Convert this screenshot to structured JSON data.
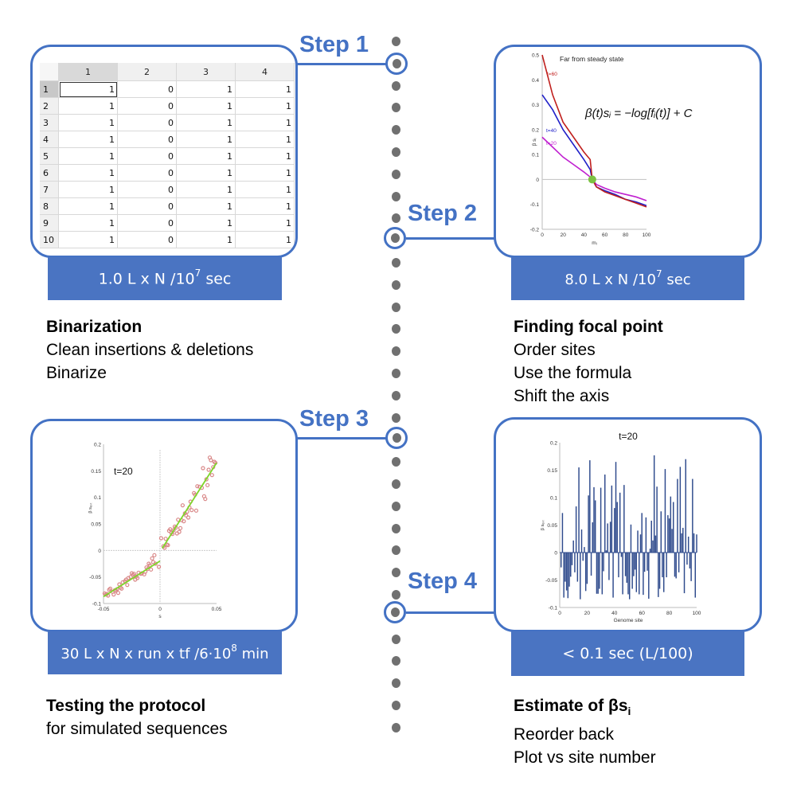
{
  "timeline": {
    "dot_color": "#707070",
    "accent_color": "#4472c4",
    "cost_box_color": "#4a74c2"
  },
  "steps": [
    {
      "label": "Step 1",
      "cost": {
        "prefix": "1.0 L x N /10",
        "sup": "7",
        "suffix": " sec"
      },
      "title": "Binarization",
      "lines": [
        "Clean insertions & deletions",
        "Binarize"
      ]
    },
    {
      "label": "Step 2",
      "cost": {
        "prefix": "8.0 L x N /10",
        "sup": "7",
        "suffix": " sec"
      },
      "title": "Finding focal point",
      "lines": [
        "Order sites",
        "Use the formula",
        "Shift the axis"
      ]
    },
    {
      "label": "Step 3",
      "cost": {
        "prefix": "30 L x N x run x tf /6·10",
        "sup": "8",
        "suffix": " min"
      },
      "title": "Testing the protocol",
      "lines": [
        "for simulated sequences"
      ]
    },
    {
      "label": "Step 4",
      "cost": {
        "prefix": "< 0.1 sec (L/100)",
        "sup": "",
        "suffix": ""
      },
      "title": "Estimate of βs",
      "title_sub": "i",
      "lines": [
        "Reorder back",
        "Plot vs site number"
      ]
    }
  ],
  "spreadsheet": {
    "columns": [
      "1",
      "2",
      "3",
      "4"
    ],
    "rows": [
      {
        "h": "1",
        "v": [
          "1",
          "0",
          "1",
          "1"
        ]
      },
      {
        "h": "2",
        "v": [
          "1",
          "0",
          "1",
          "1"
        ]
      },
      {
        "h": "3",
        "v": [
          "1",
          "0",
          "1",
          "1"
        ]
      },
      {
        "h": "4",
        "v": [
          "1",
          "0",
          "1",
          "1"
        ]
      },
      {
        "h": "5",
        "v": [
          "1",
          "0",
          "1",
          "1"
        ]
      },
      {
        "h": "6",
        "v": [
          "1",
          "0",
          "1",
          "1"
        ]
      },
      {
        "h": "7",
        "v": [
          "1",
          "0",
          "1",
          "1"
        ]
      },
      {
        "h": "8",
        "v": [
          "1",
          "0",
          "1",
          "1"
        ]
      },
      {
        "h": "9",
        "v": [
          "1",
          "0",
          "1",
          "1"
        ]
      },
      {
        "h": "10",
        "v": [
          "1",
          "0",
          "1",
          "1"
        ]
      }
    ]
  },
  "chart_data": [
    {
      "type": "line",
      "title": "Far from steady state",
      "annotation": "β(t)sᵢ = −log[fᵢ(t)] + C",
      "xlabel": "m_i",
      "ylabel": "β s_i",
      "xlim": [
        0,
        100
      ],
      "ylim": [
        -0.2,
        0.5
      ],
      "xticks": [
        "0",
        "20",
        "40",
        "60",
        "80",
        "100"
      ],
      "yticks": [
        "-0.2",
        "-0.1",
        "0",
        "0.1",
        "0.2",
        "0.3",
        "0.4",
        "0.5"
      ],
      "focal_point": {
        "x": 48,
        "y": 0,
        "color": "#7cc242"
      },
      "x": [
        0,
        10,
        20,
        30,
        40,
        46,
        48,
        52,
        60,
        70,
        80,
        90,
        100
      ],
      "series": [
        {
          "name": "t=60",
          "color": "#c0201e",
          "values": [
            0.5,
            0.34,
            0.23,
            0.17,
            0.11,
            0.08,
            0.0,
            -0.03,
            -0.05,
            -0.065,
            -0.08,
            -0.095,
            -0.11
          ]
        },
        {
          "name": "t=40",
          "color": "#2020c8",
          "values": [
            0.34,
            0.28,
            0.2,
            0.14,
            0.08,
            0.04,
            0.0,
            -0.03,
            -0.045,
            -0.06,
            -0.08,
            -0.09,
            -0.105
          ]
        },
        {
          "name": "t=20",
          "color": "#c020d0",
          "values": [
            0.17,
            0.13,
            0.09,
            0.06,
            0.03,
            0.01,
            0.0,
            -0.02,
            -0.035,
            -0.05,
            -0.06,
            -0.07,
            -0.085
          ]
        }
      ]
    },
    {
      "type": "scatter",
      "title": "t=20",
      "xlabel": "s",
      "ylabel": "β s_est",
      "xlim": [
        -0.05,
        0.05
      ],
      "ylim": [
        -0.1,
        0.2
      ],
      "xticks": [
        "-0.05",
        "0",
        "0.05"
      ],
      "yticks": [
        "-0.1",
        "-0.05",
        "0",
        "0.05",
        "0.1",
        "0.15",
        "0.2"
      ],
      "fit_color": "#7ed62a",
      "point_color": "#d98888",
      "fit_segments": [
        {
          "x": [
            -0.05,
            0.0
          ],
          "y": [
            -0.087,
            -0.02
          ]
        },
        {
          "x": [
            0.002,
            0.05
          ],
          "y": [
            0.004,
            0.165
          ]
        }
      ],
      "points": [
        [
          -0.049,
          -0.081
        ],
        [
          -0.048,
          -0.083
        ],
        [
          -0.047,
          -0.082
        ],
        [
          -0.046,
          -0.085
        ],
        [
          -0.045,
          -0.074
        ],
        [
          -0.044,
          -0.072
        ],
        [
          -0.042,
          -0.078
        ],
        [
          -0.041,
          -0.083
        ],
        [
          -0.04,
          -0.075
        ],
        [
          -0.039,
          -0.076
        ],
        [
          -0.038,
          -0.073
        ],
        [
          -0.037,
          -0.08
        ],
        [
          -0.036,
          -0.064
        ],
        [
          -0.035,
          -0.07
        ],
        [
          -0.034,
          -0.072
        ],
        [
          -0.033,
          -0.06
        ],
        [
          -0.031,
          -0.058
        ],
        [
          -0.03,
          -0.055
        ],
        [
          -0.029,
          -0.065
        ],
        [
          -0.028,
          -0.052
        ],
        [
          -0.026,
          -0.05
        ],
        [
          -0.025,
          -0.043
        ],
        [
          -0.024,
          -0.046
        ],
        [
          -0.023,
          -0.044
        ],
        [
          -0.022,
          -0.055
        ],
        [
          -0.021,
          -0.049
        ],
        [
          -0.02,
          -0.052
        ],
        [
          -0.019,
          -0.042
        ],
        [
          -0.017,
          -0.044
        ],
        [
          -0.016,
          -0.043
        ],
        [
          -0.014,
          -0.045
        ],
        [
          -0.013,
          -0.04
        ],
        [
          -0.012,
          -0.032
        ],
        [
          -0.011,
          -0.035
        ],
        [
          -0.01,
          -0.025
        ],
        [
          -0.009,
          -0.028
        ],
        [
          -0.008,
          -0.036
        ],
        [
          -0.007,
          -0.015
        ],
        [
          -0.006,
          -0.022
        ],
        [
          -0.005,
          -0.009
        ],
        [
          -0.004,
          -0.025
        ],
        [
          -0.001,
          -0.031
        ],
        [
          0.001,
          0.023
        ],
        [
          0.003,
          0.008
        ],
        [
          0.004,
          0.005
        ],
        [
          0.005,
          0.022
        ],
        [
          0.006,
          0.011
        ],
        [
          0.007,
          0.01
        ],
        [
          0.008,
          0.037
        ],
        [
          0.009,
          0.04
        ],
        [
          0.01,
          0.033
        ],
        [
          0.011,
          0.031
        ],
        [
          0.012,
          0.038
        ],
        [
          0.013,
          0.045
        ],
        [
          0.014,
          0.043
        ],
        [
          0.015,
          0.032
        ],
        [
          0.016,
          0.058
        ],
        [
          0.017,
          0.035
        ],
        [
          0.018,
          0.042
        ],
        [
          0.019,
          0.057
        ],
        [
          0.02,
          0.085
        ],
        [
          0.021,
          0.055
        ],
        [
          0.022,
          0.07
        ],
        [
          0.023,
          0.066
        ],
        [
          0.024,
          0.073
        ],
        [
          0.025,
          0.062
        ],
        [
          0.026,
          0.081
        ],
        [
          0.027,
          0.092
        ],
        [
          0.028,
          0.076
        ],
        [
          0.03,
          0.108
        ],
        [
          0.031,
          0.105
        ],
        [
          0.032,
          0.075
        ],
        [
          0.033,
          0.121
        ],
        [
          0.035,
          0.12
        ],
        [
          0.037,
          0.118
        ],
        [
          0.038,
          0.155
        ],
        [
          0.039,
          0.102
        ],
        [
          0.04,
          0.097
        ],
        [
          0.041,
          0.134
        ],
        [
          0.042,
          0.123
        ],
        [
          0.043,
          0.152
        ],
        [
          0.044,
          0.175
        ],
        [
          0.045,
          0.17
        ],
        [
          0.046,
          0.142
        ],
        [
          0.047,
          0.157
        ],
        [
          0.048,
          0.167
        ],
        [
          0.049,
          0.165
        ]
      ]
    },
    {
      "type": "bar",
      "title": "t=20",
      "xlabel": "Genome site",
      "ylabel": "β s_est",
      "xlim": [
        0,
        100
      ],
      "ylim": [
        -0.1,
        0.2
      ],
      "xticks": [
        "0",
        "20",
        "40",
        "60",
        "80",
        "100"
      ],
      "yticks": [
        "-0.1",
        "-0.05",
        "0",
        "0.05",
        "0.1",
        "0.15",
        "0.2"
      ],
      "bar_color": "#2e4a8c",
      "x": [
        1,
        2,
        3,
        4,
        5,
        6,
        7,
        8,
        9,
        10,
        11,
        12,
        13,
        14,
        15,
        16,
        17,
        18,
        19,
        20,
        21,
        22,
        23,
        24,
        25,
        26,
        27,
        28,
        29,
        30,
        31,
        32,
        33,
        34,
        35,
        36,
        37,
        38,
        39,
        40,
        41,
        42,
        43,
        44,
        45,
        46,
        47,
        48,
        49,
        50,
        51,
        52,
        53,
        54,
        55,
        56,
        57,
        58,
        59,
        60,
        61,
        62,
        63,
        64,
        65,
        66,
        67,
        68,
        69,
        70,
        71,
        72,
        73,
        74,
        75,
        76,
        77,
        78,
        79,
        80,
        81,
        82,
        83,
        84,
        85,
        86,
        87,
        88,
        89,
        90,
        91,
        92,
        93,
        94,
        95,
        96,
        97,
        98,
        99,
        100
      ],
      "values": [
        -0.027,
        0.072,
        -0.082,
        -0.053,
        -0.069,
        -0.083,
        -0.062,
        -0.044,
        -0.023,
        0.022,
        -0.036,
        0.084,
        -0.053,
        0.155,
        -0.085,
        0.042,
        -0.015,
        0.01,
        -0.07,
        -0.057,
        0.104,
        0.168,
        -0.042,
        0.055,
        0.119,
        0.095,
        -0.075,
        -0.075,
        -0.066,
        0.118,
        -0.076,
        -0.034,
        0.142,
        0.004,
        0.053,
        -0.05,
        0.056,
        0.122,
        -0.082,
        0.081,
        0.165,
        0.092,
        -0.045,
        0.109,
        -0.008,
        -0.076,
        0.123,
        -0.043,
        -0.055,
        -0.076,
        -0.085,
        0.051,
        -0.066,
        -0.043,
        -0.031,
        -0.072,
        0.04,
        -0.076,
        0.033,
        0.072,
        -0.077,
        -0.035,
        0.064,
        -0.033,
        -0.084,
        0.007,
        0.058,
        0.022,
        0.177,
        0.031,
        0.12,
        -0.081,
        -0.066,
        0.075,
        -0.045,
        -0.072,
        0.152,
        -0.045,
        0.068,
        0.062,
        0.102,
        0.043,
        0.092,
        -0.044,
        -0.047,
        0.134,
        -0.036,
        0.156,
        0.035,
        0.045,
        -0.074,
        0.17,
        -0.022,
        0.029,
        -0.029,
        -0.052,
        0.134,
        0.035,
        -0.082,
        0.033
      ]
    }
  ]
}
